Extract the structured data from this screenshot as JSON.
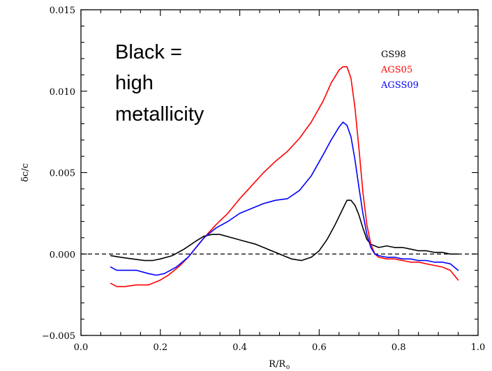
{
  "chart_data": {
    "type": "line",
    "title": "",
    "xlabel": "R/R",
    "xlabel_subscript": "⊙",
    "ylabel": "δc/c",
    "xlim": [
      0.0,
      1.0
    ],
    "ylim": [
      -0.005,
      0.015
    ],
    "x_ticks": [
      0.0,
      0.2,
      0.4,
      0.6,
      0.8,
      1.0
    ],
    "x_tick_labels": [
      "0.0",
      "0.2",
      "0.4",
      "0.6",
      "0.8",
      "1.0"
    ],
    "y_ticks": [
      -0.005,
      0.0,
      0.005,
      0.01,
      0.015
    ],
    "y_tick_labels": [
      "−0.005",
      "0.000",
      "0.005",
      "0.010",
      "0.015"
    ],
    "grid": false,
    "legend_position": "top-right",
    "reference_line": {
      "y": 0.0,
      "style": "dashed",
      "color": "#000000"
    },
    "annotation": [
      "Black =",
      "high",
      "metallicity"
    ],
    "series": [
      {
        "name": "GS98",
        "color": "#000000",
        "x": [
          0.075,
          0.1,
          0.13,
          0.16,
          0.18,
          0.2,
          0.23,
          0.26,
          0.29,
          0.31,
          0.33,
          0.35,
          0.38,
          0.41,
          0.44,
          0.47,
          0.5,
          0.53,
          0.555,
          0.58,
          0.6,
          0.62,
          0.64,
          0.66,
          0.67,
          0.68,
          0.69,
          0.7,
          0.71,
          0.72,
          0.73,
          0.74,
          0.75,
          0.77,
          0.79,
          0.81,
          0.83,
          0.85,
          0.87,
          0.89,
          0.91,
          0.93,
          0.95
        ],
        "y": [
          -0.0001,
          -0.0002,
          -0.0003,
          -0.0004,
          -0.0004,
          -0.0003,
          -0.0001,
          0.0003,
          0.0008,
          0.0011,
          0.0012,
          0.0012,
          0.001,
          0.0008,
          0.0006,
          0.0003,
          0.0,
          -0.0003,
          -0.0004,
          -0.0002,
          0.0002,
          0.0009,
          0.0018,
          0.0028,
          0.0033,
          0.0033,
          0.003,
          0.0024,
          0.0016,
          0.0009,
          0.0006,
          0.0005,
          0.0004,
          0.0005,
          0.0004,
          0.0004,
          0.0003,
          0.0002,
          0.0002,
          0.0001,
          0.0001,
          0.0,
          0.0
        ]
      },
      {
        "name": "AGS05",
        "color": "#ff0000",
        "x": [
          0.075,
          0.09,
          0.11,
          0.14,
          0.17,
          0.2,
          0.22,
          0.25,
          0.27,
          0.29,
          0.31,
          0.34,
          0.37,
          0.4,
          0.43,
          0.46,
          0.49,
          0.52,
          0.55,
          0.58,
          0.61,
          0.63,
          0.65,
          0.66,
          0.67,
          0.68,
          0.69,
          0.7,
          0.71,
          0.72,
          0.73,
          0.74,
          0.75,
          0.77,
          0.79,
          0.81,
          0.83,
          0.85,
          0.87,
          0.89,
          0.91,
          0.93,
          0.95
        ],
        "y": [
          -0.0018,
          -0.002,
          -0.002,
          -0.0019,
          -0.0019,
          -0.0016,
          -0.0013,
          -0.0007,
          -0.0002,
          0.0004,
          0.001,
          0.0018,
          0.0025,
          0.0034,
          0.0042,
          0.005,
          0.0057,
          0.0063,
          0.0071,
          0.0081,
          0.0094,
          0.0105,
          0.0113,
          0.0115,
          0.0115,
          0.0108,
          0.009,
          0.0065,
          0.0038,
          0.0018,
          0.0006,
          0.0,
          -0.0002,
          -0.0003,
          -0.0003,
          -0.0004,
          -0.0005,
          -0.0005,
          -0.0006,
          -0.0007,
          -0.0008,
          -0.001,
          -0.0016
        ]
      },
      {
        "name": "AGSS09",
        "color": "#0000ff",
        "x": [
          0.075,
          0.09,
          0.11,
          0.14,
          0.17,
          0.19,
          0.21,
          0.24,
          0.27,
          0.29,
          0.31,
          0.34,
          0.37,
          0.4,
          0.43,
          0.46,
          0.49,
          0.52,
          0.55,
          0.58,
          0.61,
          0.63,
          0.65,
          0.66,
          0.67,
          0.68,
          0.69,
          0.7,
          0.71,
          0.72,
          0.73,
          0.74,
          0.75,
          0.77,
          0.79,
          0.81,
          0.83,
          0.85,
          0.87,
          0.89,
          0.91,
          0.93,
          0.95
        ],
        "y": [
          -0.0008,
          -0.001,
          -0.001,
          -0.001,
          -0.0012,
          -0.0013,
          -0.0012,
          -0.0008,
          -0.0002,
          0.0004,
          0.001,
          0.0016,
          0.002,
          0.0025,
          0.0028,
          0.0031,
          0.0033,
          0.0034,
          0.0039,
          0.0048,
          0.0061,
          0.007,
          0.0078,
          0.0081,
          0.0079,
          0.0072,
          0.0058,
          0.0041,
          0.0025,
          0.0012,
          0.0004,
          0.0,
          -0.0001,
          -0.0002,
          -0.0002,
          -0.0003,
          -0.0003,
          -0.0004,
          -0.0004,
          -0.0005,
          -0.0005,
          -0.0006,
          -0.001
        ]
      }
    ]
  }
}
